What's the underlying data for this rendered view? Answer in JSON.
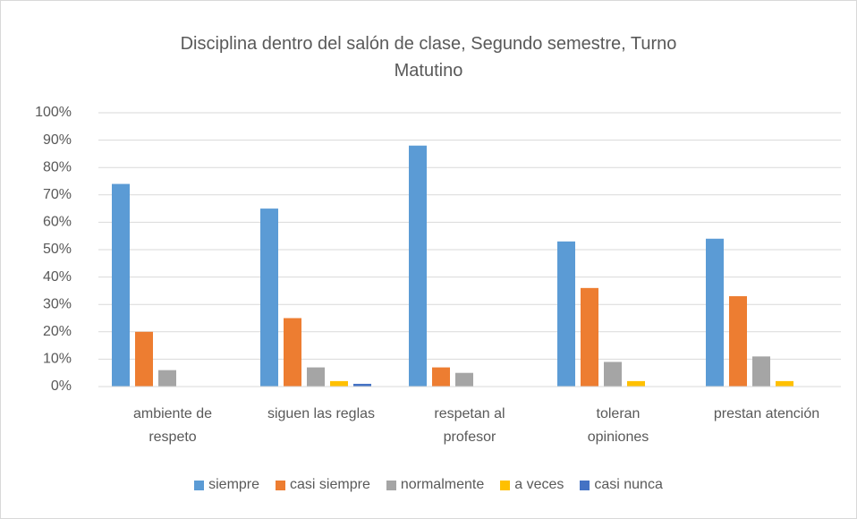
{
  "chart_data": {
    "type": "bar",
    "title": "Disciplina dentro del salón de clase, Segundo semestre, Turno\nMatutino",
    "categories": [
      "ambiente de\nrespeto",
      "siguen las reglas",
      "respetan al\nprofesor",
      "toleran\nopiniones",
      "prestan atención"
    ],
    "series": [
      {
        "name": "siempre",
        "color": "#5b9bd5",
        "values": [
          74,
          65,
          88,
          53,
          54
        ]
      },
      {
        "name": "casi siempre",
        "color": "#ed7d31",
        "values": [
          20,
          25,
          7,
          36,
          33
        ]
      },
      {
        "name": "normalmente",
        "color": "#a5a5a5",
        "values": [
          6,
          7,
          5,
          9,
          11
        ]
      },
      {
        "name": "a veces",
        "color": "#ffc000",
        "values": [
          0,
          2,
          0,
          2,
          2
        ]
      },
      {
        "name": "casi nunca",
        "color": "#4472c4",
        "values": [
          0,
          1,
          0,
          0,
          0
        ]
      }
    ],
    "ylim": [
      0,
      100
    ],
    "yticks": [
      {
        "value": 0,
        "label": "0%"
      },
      {
        "value": 10,
        "label": "10%"
      },
      {
        "value": 20,
        "label": "20%"
      },
      {
        "value": 30,
        "label": "30%"
      },
      {
        "value": 40,
        "label": "40%"
      },
      {
        "value": 50,
        "label": "50%"
      },
      {
        "value": 60,
        "label": "60%"
      },
      {
        "value": 70,
        "label": "70%"
      },
      {
        "value": 80,
        "label": "80%"
      },
      {
        "value": 90,
        "label": "90%"
      },
      {
        "value": 100,
        "label": "100%"
      }
    ],
    "grid": true,
    "legend": "bottom"
  }
}
